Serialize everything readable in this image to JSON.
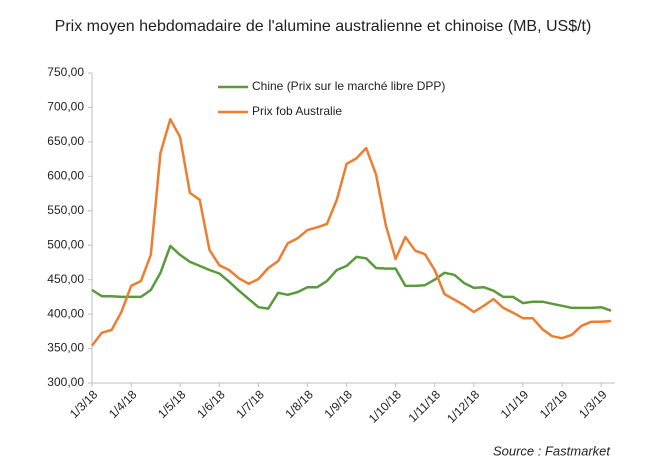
{
  "chart_data": {
    "type": "line",
    "title": "Prix moyen hebdomadaire de l'alumine australienne et chinoise (MB, US$/t)",
    "source": "Source : Fastmarket",
    "categories": [
      "1/3/18",
      null,
      null,
      null,
      "1/4/18",
      null,
      null,
      null,
      null,
      "1/5/18",
      null,
      null,
      null,
      "1/6/18",
      null,
      null,
      null,
      "1/7/18",
      null,
      null,
      null,
      null,
      "1/8/18",
      null,
      null,
      null,
      "1/9/18",
      null,
      null,
      null,
      null,
      "1/10/18",
      null,
      null,
      null,
      "1/11/18",
      null,
      null,
      null,
      "1/12/18",
      null,
      null,
      null,
      null,
      "1/1/19",
      null,
      null,
      null,
      "1/2/19",
      null,
      null,
      null,
      "1/3/19",
      null
    ],
    "series": [
      {
        "name": "Chine (Prix sur le marché libre DPP)",
        "color": "#5b9a3c",
        "values": [
          435,
          426,
          426,
          425,
          425,
          425,
          435,
          460,
          499,
          486,
          476,
          470,
          464,
          459,
          447,
          434,
          422,
          410,
          408,
          431,
          428,
          432,
          439,
          439,
          448,
          464,
          470,
          483,
          481,
          467,
          466,
          466,
          441,
          441,
          442,
          450,
          460,
          457,
          445,
          438,
          439,
          434,
          425,
          425,
          416,
          418,
          418,
          415,
          412,
          409,
          409,
          409,
          410,
          405
        ]
      },
      {
        "name": "Prix fob Australie",
        "color": "#ed7d31",
        "values": [
          354,
          373,
          377,
          403,
          441,
          448,
          486,
          634,
          683,
          657,
          576,
          566,
          493,
          471,
          464,
          452,
          444,
          451,
          467,
          477,
          503,
          510,
          522,
          526,
          531,
          566,
          618,
          626,
          641,
          603,
          529,
          480,
          512,
          492,
          487,
          464,
          429,
          421,
          413,
          403,
          412,
          422,
          409,
          402,
          394,
          394,
          378,
          368,
          365,
          370,
          383,
          389,
          389,
          390
        ]
      }
    ],
    "ylim": [
      300,
      750
    ],
    "yticks": [
      {
        "value": 300,
        "label": "300,00"
      },
      {
        "value": 350,
        "label": "350,00"
      },
      {
        "value": 400,
        "label": "400,00"
      },
      {
        "value": 450,
        "label": "450,00"
      },
      {
        "value": 500,
        "label": "500,00"
      },
      {
        "value": 550,
        "label": "550,00"
      },
      {
        "value": 600,
        "label": "600,00"
      },
      {
        "value": 650,
        "label": "650,00"
      },
      {
        "value": 700,
        "label": "700,00"
      },
      {
        "value": 750,
        "label": "750,00"
      }
    ],
    "grid": false
  }
}
